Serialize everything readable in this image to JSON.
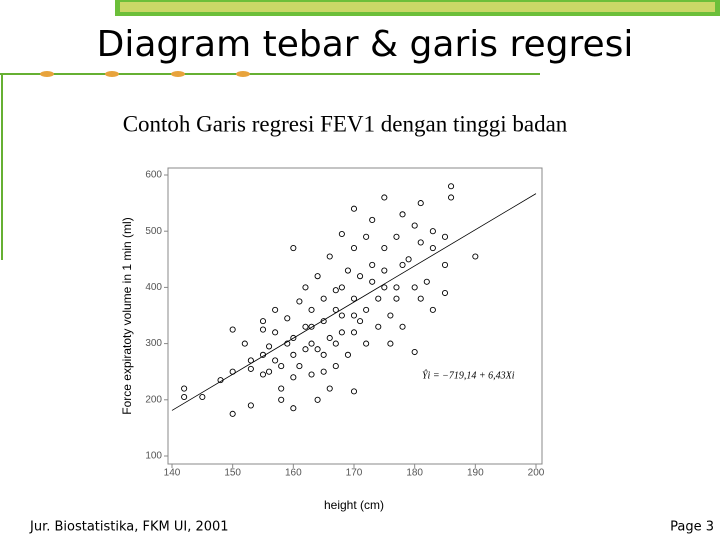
{
  "slide": {
    "title": "Diagram tebar & garis regresi",
    "subtitle": "Contoh Garis regresi FEV1 dengan tinggi badan",
    "footer": "Jur. Biostatistika, FKM UI, 2001",
    "page": "Page 3"
  },
  "chart_data": {
    "type": "scatter",
    "xlabel": "height (cm)",
    "ylabel": "Force expiratoty volume in 1 min (ml)",
    "xlim": [
      140,
      200
    ],
    "xticks": [
      140,
      150,
      160,
      170,
      180,
      190,
      200
    ],
    "ylim": [
      100,
      600
    ],
    "yticks": [
      100,
      200,
      300,
      400,
      500,
      600
    ],
    "color": "#000000",
    "x": [
      142,
      142,
      145,
      148,
      150,
      150,
      150,
      152,
      153,
      153,
      153,
      155,
      155,
      155,
      155,
      156,
      156,
      157,
      157,
      158,
      158,
      158,
      159,
      159,
      160,
      160,
      160,
      160,
      160,
      161,
      161,
      162,
      162,
      162,
      163,
      163,
      163,
      164,
      164,
      164,
      165,
      165,
      165,
      166,
      166,
      166,
      167,
      167,
      167,
      168,
      168,
      168,
      168,
      169,
      169,
      170,
      170,
      170,
      170,
      170,
      171,
      171,
      172,
      172,
      172,
      173,
      173,
      173,
      174,
      174,
      175,
      175,
      175,
      175,
      176,
      176,
      177,
      177,
      178,
      178,
      178,
      179,
      180,
      180,
      180,
      181,
      181,
      181,
      182,
      183,
      183,
      183,
      185,
      185,
      185,
      186,
      186,
      190,
      177,
      165,
      157,
      163,
      170,
      167
    ],
    "values": [
      220,
      205,
      205,
      235,
      175,
      325,
      250,
      300,
      270,
      255,
      190,
      245,
      280,
      325,
      340,
      295,
      250,
      360,
      320,
      200,
      220,
      260,
      300,
      345,
      185,
      240,
      280,
      470,
      310,
      375,
      260,
      290,
      330,
      400,
      300,
      360,
      245,
      200,
      420,
      290,
      340,
      250,
      380,
      220,
      455,
      310,
      300,
      395,
      260,
      495,
      350,
      320,
      400,
      280,
      430,
      540,
      215,
      470,
      380,
      320,
      340,
      420,
      300,
      490,
      360,
      520,
      410,
      440,
      380,
      330,
      560,
      470,
      400,
      430,
      300,
      350,
      490,
      400,
      530,
      330,
      440,
      450,
      510,
      400,
      285,
      550,
      480,
      380,
      410,
      360,
      470,
      500,
      440,
      390,
      490,
      580,
      560,
      455,
      380,
      280,
      270,
      330,
      350,
      360
    ],
    "regression": {
      "intercept": -719.14,
      "slope": 6.43,
      "label": "Ŷi = −719,14 + 6,43Xi"
    }
  }
}
